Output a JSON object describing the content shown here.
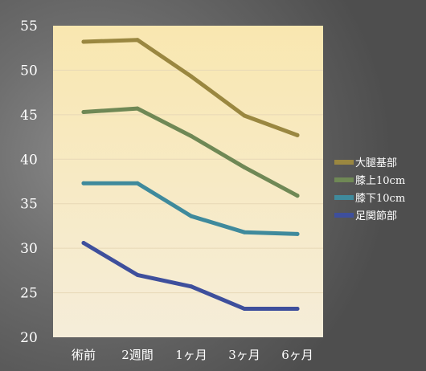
{
  "chart_data": {
    "type": "line",
    "categories": [
      "術前",
      "2週間",
      "1ヶ月",
      "3ヶ月",
      "6ヶ月"
    ],
    "ylim": [
      20,
      55
    ],
    "yticks": [
      20,
      25,
      30,
      35,
      40,
      45,
      50,
      55
    ],
    "grid": true,
    "legend_position": "right",
    "series": [
      {
        "name": "大腿基部",
        "values": [
          53.2,
          53.4,
          49.3,
          44.9,
          42.7
        ],
        "color": "#9a8740"
      },
      {
        "name": "膝上10cm",
        "values": [
          45.3,
          45.7,
          42.6,
          39.1,
          35.9
        ],
        "color": "#6f8855"
      },
      {
        "name": "膝下10cm",
        "values": [
          37.3,
          37.3,
          33.6,
          31.8,
          31.6
        ],
        "color": "#3f8a9c"
      },
      {
        "name": "足関節部",
        "values": [
          30.6,
          27.0,
          25.7,
          23.2,
          23.2
        ],
        "color": "#3e4f9c"
      }
    ]
  }
}
